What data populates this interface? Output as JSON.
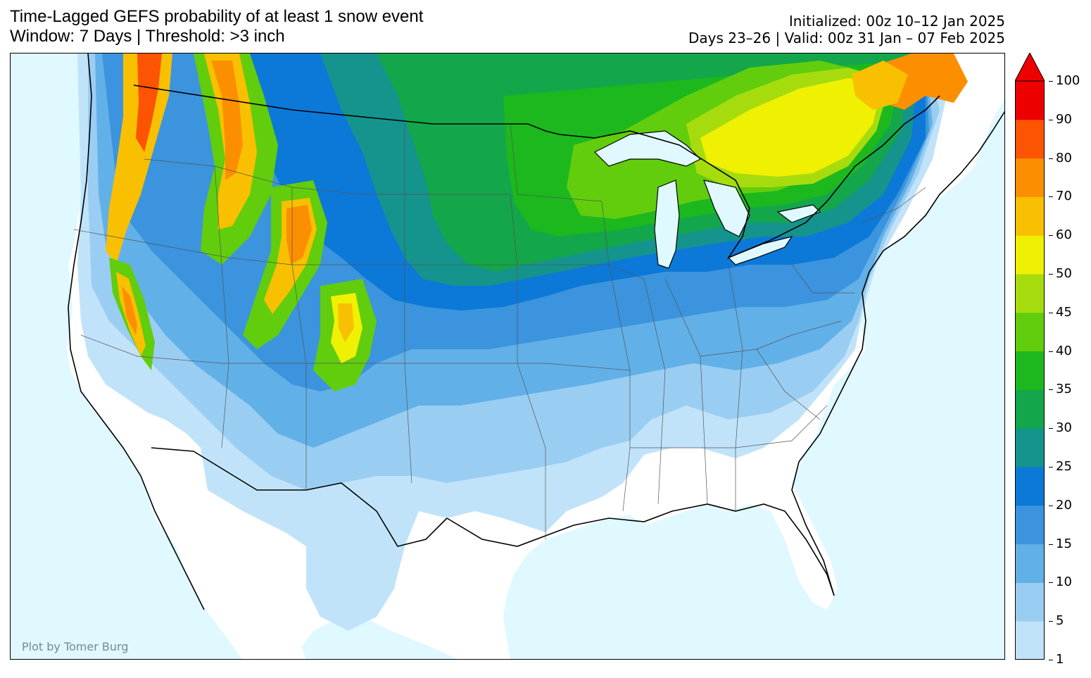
{
  "title": {
    "line1": "Time-Lagged GEFS probability of at least 1 snow event",
    "line2": "Window: 7 Days | Threshold: >3 inch"
  },
  "meta": {
    "line1": "Initialized: 00z 10–12 Jan 2025",
    "line2": "Days 23–26 | Valid: 00z 31 Jan – 07 Feb 2025"
  },
  "credit": "Plot by Tomer Burg",
  "colorbar": {
    "levels": [
      "1",
      "5",
      "10",
      "15",
      "20",
      "25",
      "30",
      "35",
      "40",
      "45",
      "50",
      "60",
      "70",
      "80",
      "90",
      "100"
    ],
    "colors": [
      "#c1e3f9",
      "#9acdf2",
      "#62b0e8",
      "#3b94dd",
      "#0c79d8",
      "#14948d",
      "#13a64b",
      "#1cb81e",
      "#61cd0c",
      "#a6dc0e",
      "#f0f002",
      "#f8c000",
      "#fb8f00",
      "#fc5402",
      "#ee0000"
    ],
    "extend_color": "#ee0000"
  },
  "map": {
    "ocean_color": "#e0f8ff",
    "land_color": "#ffffff",
    "regions": [
      {
        "name": "pacific-nw-coast-orange",
        "color": "#fb8f00"
      },
      {
        "name": "northern-rockies-orange",
        "color": "#fb8f00"
      },
      {
        "name": "colorado-rockies-orange",
        "color": "#fb8f00"
      },
      {
        "name": "sierra-orange",
        "color": "#fb8f00"
      },
      {
        "name": "new-england-yellow",
        "color": "#f0f002"
      },
      {
        "name": "northern-plains-green",
        "color": "#13a64b"
      },
      {
        "name": "great-lakes-green",
        "color": "#61cd0c"
      },
      {
        "name": "central-blue",
        "color": "#0c79d8"
      },
      {
        "name": "southern-light-blue",
        "color": "#c1e3f9"
      }
    ]
  }
}
